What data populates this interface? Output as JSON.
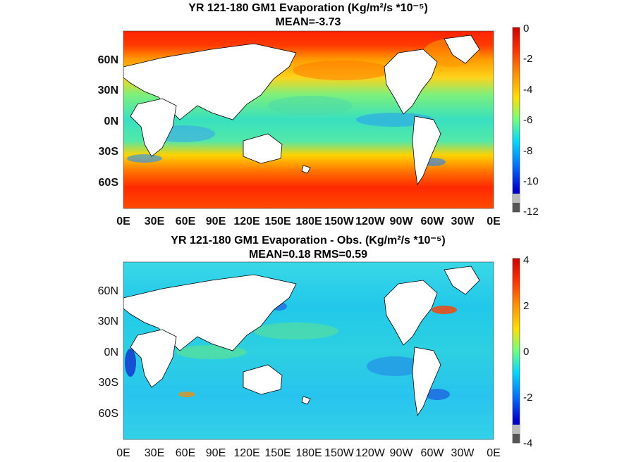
{
  "chart_data": [
    {
      "type": "heatmap",
      "title": "YR 121-180 GM1  Evaporation (Kg/m²/s *10⁻⁵)",
      "subtitle": "MEAN=-3.73",
      "xticks": [
        "0E",
        "30E",
        "60E",
        "90E",
        "120E",
        "150E",
        "180E",
        "150W",
        "120W",
        "90W",
        "60W",
        "30W",
        "0E"
      ],
      "yticks": [
        "60N",
        "30N",
        "0N",
        "30S",
        "60S"
      ],
      "colorbar": {
        "ticks": [
          "0",
          "-2",
          "-4",
          "-6",
          "-8",
          "-10",
          "-12"
        ],
        "min": -12,
        "max": 0
      },
      "colormap": "jet",
      "mean": -3.73
    },
    {
      "type": "heatmap",
      "title": "YR 121-180 GM1 Evaporation - Obs. (Kg/m²/s *10⁻⁵)",
      "subtitle": "MEAN=0.18   RMS=0.59",
      "xticks": [
        "0E",
        "30E",
        "60E",
        "90E",
        "120E",
        "150E",
        "180E",
        "150W",
        "120W",
        "90W",
        "60W",
        "30W",
        "0E"
      ],
      "yticks": [
        "60N",
        "30N",
        "0N",
        "30S",
        "60S"
      ],
      "colorbar": {
        "ticks": [
          "4",
          "2",
          "0",
          "-2",
          "-4"
        ],
        "min": -4,
        "max": 4
      },
      "colormap": "jet",
      "mean": 0.18,
      "rms": 0.59
    }
  ]
}
